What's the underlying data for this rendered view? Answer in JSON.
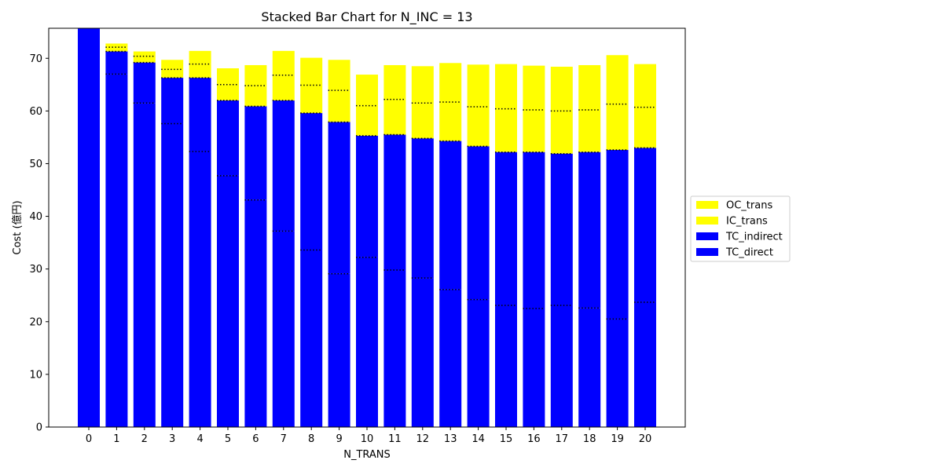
{
  "chart_data": {
    "type": "bar",
    "stacked": true,
    "title": "Stacked Bar Chart for N_INC = 13",
    "xlabel": "N_TRANS",
    "ylabel": "Cost (億円)",
    "ylim": [
      0,
      75.7
    ],
    "yticks": [
      0,
      10,
      20,
      30,
      40,
      50,
      60,
      70
    ],
    "categories": [
      "0",
      "1",
      "2",
      "3",
      "4",
      "5",
      "6",
      "7",
      "8",
      "9",
      "10",
      "11",
      "12",
      "13",
      "14",
      "15",
      "16",
      "17",
      "18",
      "19",
      "20"
    ],
    "series": [
      {
        "name": "TC_direct",
        "color": "#0000ff",
        "values": [
          75.7,
          67.0,
          61.5,
          57.6,
          52.3,
          47.7,
          43.1,
          37.2,
          33.6,
          29.1,
          32.2,
          29.8,
          28.3,
          26.1,
          24.2,
          23.1,
          22.5,
          23.1,
          22.6,
          20.5,
          23.7
        ]
      },
      {
        "name": "TC_indirect",
        "color": "#0000ff",
        "values": [
          0.0,
          4.3,
          7.7,
          8.7,
          14.0,
          14.3,
          17.8,
          24.8,
          26.0,
          28.8,
          23.1,
          25.7,
          26.5,
          28.2,
          29.1,
          29.1,
          29.7,
          28.8,
          29.6,
          32.1,
          29.3
        ]
      },
      {
        "name": "IC_trans",
        "color": "#ffff00",
        "values": [
          0.0,
          0.8,
          1.2,
          1.6,
          2.6,
          3.0,
          3.9,
          4.8,
          5.3,
          6.0,
          5.7,
          6.7,
          6.7,
          7.4,
          7.5,
          8.2,
          8.0,
          8.1,
          8.0,
          8.7,
          7.7
        ]
      },
      {
        "name": "OC_trans",
        "color": "#ffff00",
        "values": [
          0.0,
          0.7,
          0.9,
          1.8,
          2.5,
          3.1,
          3.9,
          4.6,
          5.2,
          5.8,
          5.9,
          6.5,
          7.0,
          7.4,
          8.0,
          8.5,
          8.4,
          8.4,
          8.5,
          9.3,
          8.2
        ]
      }
    ],
    "legend": {
      "placement": "center-right outside",
      "entries": [
        "OC_trans",
        "IC_trans",
        "TC_indirect",
        "TC_direct"
      ]
    }
  }
}
